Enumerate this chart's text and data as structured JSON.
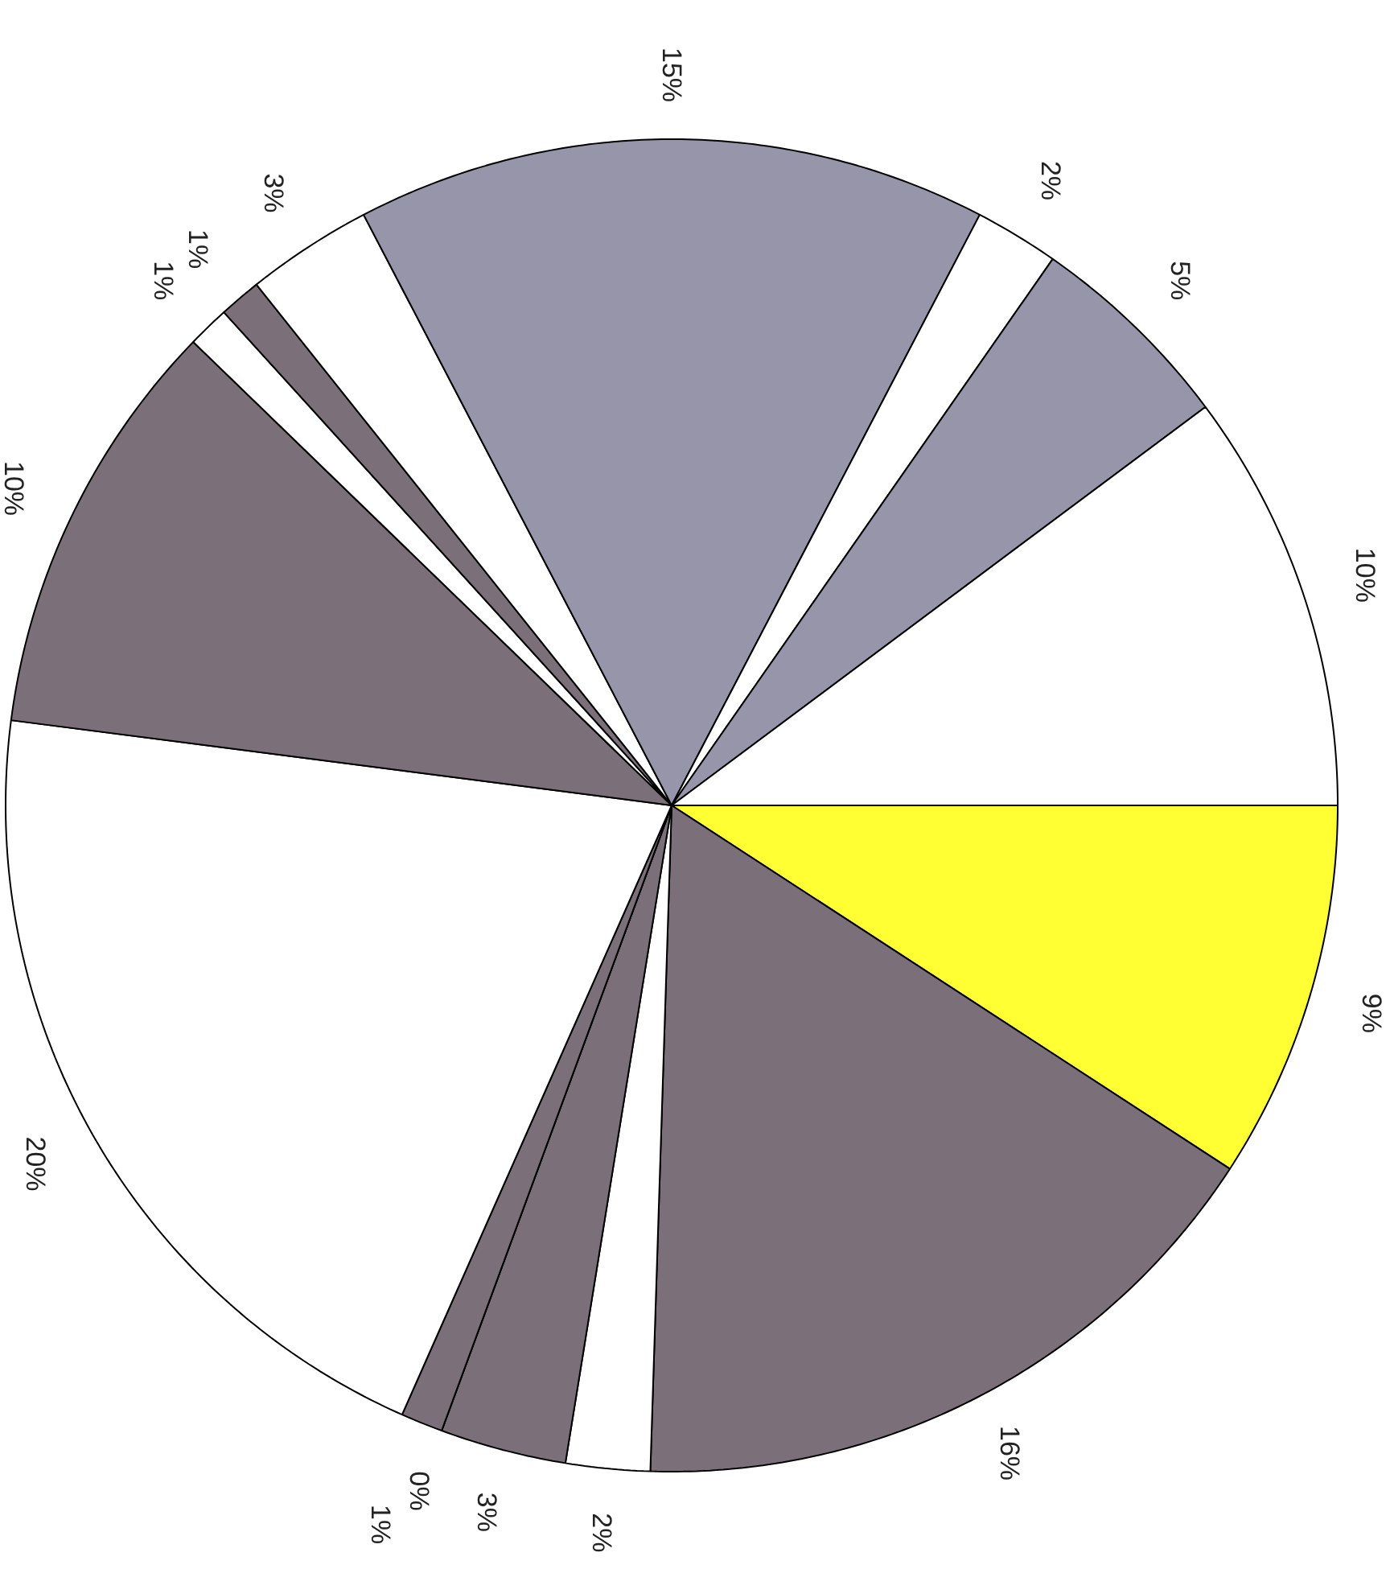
{
  "chart_data": {
    "type": "pie",
    "categories": [
      null,
      null,
      null,
      null,
      null,
      null,
      null,
      null,
      null,
      null,
      null,
      null,
      null,
      null,
      null
    ],
    "values": [
      9,
      16,
      2,
      3,
      0,
      1,
      20,
      10,
      1,
      1,
      3,
      15,
      2,
      5,
      10
    ],
    "value_labels": [
      "9%",
      "16%",
      "2%",
      "3%",
      "0%",
      "1%",
      "20%",
      "10%",
      "1%",
      "1%",
      "3%",
      "15%",
      "2%",
      "5%",
      "10%"
    ],
    "colors": [
      "#ffff33",
      "#7b6f79",
      "#ffffff",
      "#7b6f79",
      "#ffffff",
      "#7b6f79",
      "#ffffff",
      "#7b6f79",
      "#ffffff",
      "#7b6f79",
      "#ffffff",
      "#9695aa",
      "#ffffff",
      "#9695aa",
      "#ffffff"
    ]
  }
}
